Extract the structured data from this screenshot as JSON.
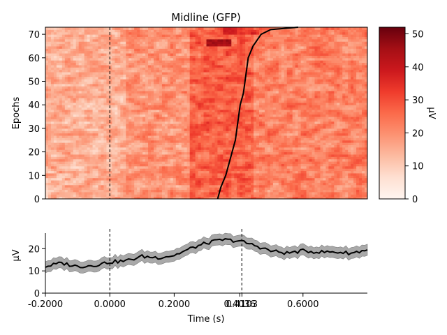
{
  "chart_data": [
    {
      "type": "heatmap",
      "title": "Midline (GFP)",
      "ylabel": "Epochs",
      "x_range": [
        -0.2,
        0.8
      ],
      "ylim": [
        0,
        73
      ],
      "yticks": [
        "0",
        "10",
        "20",
        "30",
        "40",
        "50",
        "60",
        "70"
      ],
      "colormap": "Reds",
      "colorbar": {
        "label": "µV",
        "range": [
          0,
          52
        ],
        "ticks": [
          "0",
          "10",
          "20",
          "30",
          "40",
          "50"
        ]
      },
      "event_marker_x": 0.0,
      "sort_line": {
        "epochs": [
          0,
          5,
          10,
          15,
          20,
          25,
          30,
          35,
          40,
          45,
          50,
          55,
          60,
          65,
          70,
          72,
          73
        ],
        "times": [
          0.335,
          0.345,
          0.36,
          0.37,
          0.38,
          0.39,
          0.395,
          0.4,
          0.405,
          0.415,
          0.42,
          0.425,
          0.43,
          0.445,
          0.47,
          0.5,
          0.585
        ]
      }
    },
    {
      "type": "line",
      "ylabel": "µV",
      "xlabel": "Time (s)",
      "xlim": [
        -0.2,
        0.8
      ],
      "ylim": [
        0,
        27
      ],
      "yticks": [
        "0",
        "10",
        "20"
      ],
      "xticks": [
        "-0.2000",
        "0.0000",
        "0.2000",
        "0.4036",
        "0.6000"
      ],
      "xtick_extra_overlap": "0.4103",
      "vlines": [
        0.0,
        0.41
      ],
      "series": [
        {
          "x": [
            -0.2,
            -0.15,
            -0.1,
            -0.05,
            0.0,
            0.05,
            0.1,
            0.15,
            0.2,
            0.25,
            0.3,
            0.35,
            0.4,
            0.45,
            0.5,
            0.55,
            0.6,
            0.65,
            0.7,
            0.75,
            0.8
          ],
          "values": [
            12,
            13.5,
            12,
            12.5,
            14,
            14.5,
            16.5,
            16,
            17,
            20,
            22.5,
            24,
            23.5,
            21.5,
            19,
            18,
            19,
            18.5,
            18.5,
            18,
            19.5
          ],
          "band": 2.5
        }
      ]
    }
  ]
}
